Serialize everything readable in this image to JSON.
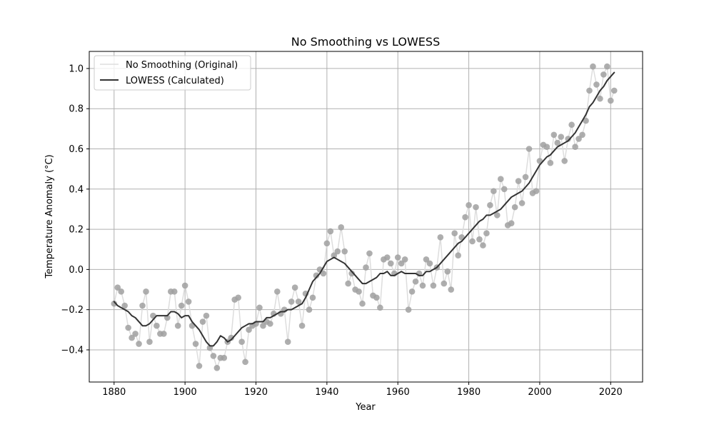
{
  "chart_data": {
    "type": "line",
    "title": "No Smoothing vs LOWESS",
    "xlabel": "Year",
    "ylabel": "Temperature Anomaly (°C)",
    "xlim": [
      1873,
      2029
    ],
    "ylim": [
      -0.56,
      1.085
    ],
    "grid": true,
    "legend_placement": "upper-left",
    "xticks": [
      1880,
      1900,
      1920,
      1940,
      1960,
      1980,
      2000,
      2020
    ],
    "yticks": [
      -0.4,
      -0.2,
      0.0,
      0.2,
      0.4,
      0.6,
      0.8,
      1.0
    ],
    "xtick_labels": [
      "1880",
      "1900",
      "1920",
      "1940",
      "1960",
      "1980",
      "2000",
      "2020"
    ],
    "ytick_labels": [
      "−0.4",
      "−0.2",
      "0.0",
      "0.2",
      "0.4",
      "0.6",
      "0.8",
      "1.0"
    ],
    "colors": {
      "raw_line": "#dddddd",
      "raw_marker": "#a0a0a0",
      "lowess_line": "#333333",
      "grid": "#b0b0b0"
    },
    "series": [
      {
        "name": "No Smoothing (Original)",
        "start_year": 1880,
        "values": [
          -0.17,
          -0.09,
          -0.11,
          -0.18,
          -0.29,
          -0.34,
          -0.32,
          -0.37,
          -0.18,
          -0.11,
          -0.36,
          -0.23,
          -0.28,
          -0.32,
          -0.32,
          -0.24,
          -0.11,
          -0.11,
          -0.28,
          -0.18,
          -0.08,
          -0.16,
          -0.28,
          -0.37,
          -0.48,
          -0.26,
          -0.23,
          -0.39,
          -0.43,
          -0.49,
          -0.44,
          -0.44,
          -0.36,
          -0.34,
          -0.15,
          -0.14,
          -0.36,
          -0.46,
          -0.3,
          -0.28,
          -0.27,
          -0.19,
          -0.28,
          -0.26,
          -0.27,
          -0.22,
          -0.11,
          -0.22,
          -0.2,
          -0.36,
          -0.16,
          -0.09,
          -0.16,
          -0.28,
          -0.12,
          -0.2,
          -0.14,
          -0.03,
          0.0,
          -0.02,
          0.13,
          0.19,
          0.07,
          0.09,
          0.21,
          0.09,
          -0.07,
          -0.02,
          -0.1,
          -0.11,
          -0.17,
          0.01,
          0.08,
          -0.13,
          -0.14,
          -0.19,
          0.05,
          0.06,
          0.03,
          -0.02,
          0.06,
          0.03,
          0.05,
          -0.2,
          -0.11,
          -0.06,
          -0.02,
          -0.08,
          0.05,
          0.03,
          -0.08,
          0.01,
          0.16,
          -0.07,
          -0.01,
          -0.1,
          0.18,
          0.07,
          0.16,
          0.26,
          0.32,
          0.14,
          0.31,
          0.15,
          0.12,
          0.18,
          0.32,
          0.39,
          0.27,
          0.45,
          0.4,
          0.22,
          0.23,
          0.31,
          0.44,
          0.33,
          0.46,
          0.6,
          0.38,
          0.39,
          0.54,
          0.62,
          0.61,
          0.53,
          0.67,
          0.63,
          0.66,
          0.54,
          0.65,
          0.72,
          0.61,
          0.65,
          0.67,
          0.74,
          0.89,
          1.01,
          0.92,
          0.85,
          0.97,
          1.01,
          0.84,
          0.89
        ]
      },
      {
        "name": "LOWESS (Calculated)",
        "start_year": 1880,
        "values": [
          -0.16,
          -0.18,
          -0.19,
          -0.2,
          -0.21,
          -0.23,
          -0.24,
          -0.26,
          -0.28,
          -0.28,
          -0.27,
          -0.25,
          -0.23,
          -0.23,
          -0.23,
          -0.23,
          -0.21,
          -0.21,
          -0.22,
          -0.24,
          -0.23,
          -0.23,
          -0.26,
          -0.28,
          -0.3,
          -0.33,
          -0.36,
          -0.38,
          -0.38,
          -0.36,
          -0.33,
          -0.34,
          -0.36,
          -0.35,
          -0.33,
          -0.31,
          -0.29,
          -0.28,
          -0.27,
          -0.27,
          -0.26,
          -0.26,
          -0.26,
          -0.24,
          -0.24,
          -0.23,
          -0.22,
          -0.21,
          -0.21,
          -0.2,
          -0.2,
          -0.19,
          -0.18,
          -0.17,
          -0.14,
          -0.1,
          -0.06,
          -0.04,
          -0.02,
          0.01,
          0.04,
          0.05,
          0.06,
          0.05,
          0.04,
          0.03,
          0.01,
          -0.01,
          -0.03,
          -0.05,
          -0.07,
          -0.07,
          -0.06,
          -0.05,
          -0.04,
          -0.02,
          -0.02,
          -0.01,
          -0.03,
          -0.03,
          -0.02,
          -0.01,
          -0.02,
          -0.02,
          -0.02,
          -0.02,
          -0.03,
          -0.03,
          -0.01,
          -0.01,
          0.0,
          0.01,
          0.03,
          0.05,
          0.07,
          0.09,
          0.11,
          0.13,
          0.14,
          0.16,
          0.18,
          0.2,
          0.22,
          0.24,
          0.25,
          0.27,
          0.27,
          0.28,
          0.29,
          0.3,
          0.32,
          0.34,
          0.36,
          0.37,
          0.38,
          0.39,
          0.41,
          0.43,
          0.46,
          0.49,
          0.52,
          0.54,
          0.56,
          0.57,
          0.59,
          0.61,
          0.62,
          0.63,
          0.64,
          0.66,
          0.68,
          0.71,
          0.74,
          0.77,
          0.81,
          0.83,
          0.86,
          0.89,
          0.91,
          0.94,
          0.96,
          0.98
        ]
      }
    ]
  }
}
